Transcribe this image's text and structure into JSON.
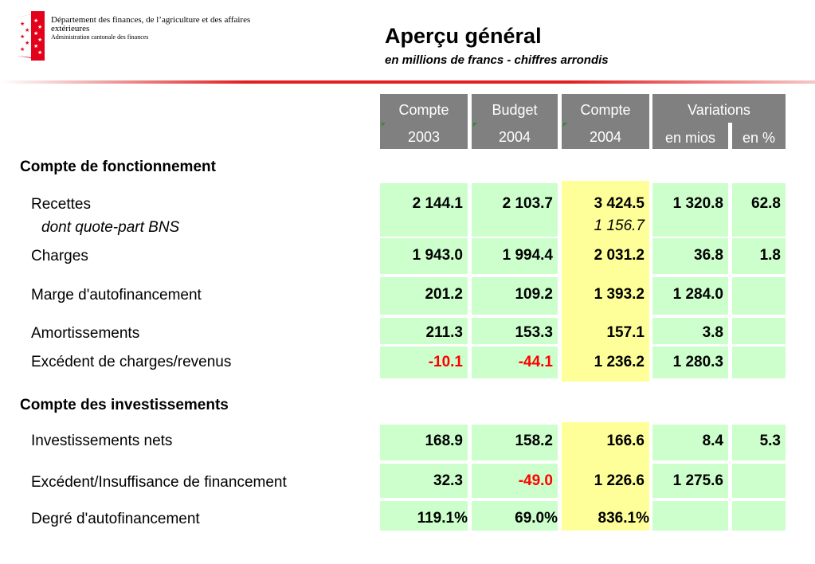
{
  "header": {
    "department": "Département des finances, de l’agriculture et des affaires extérieures",
    "administration": "Administration cantonale des finances",
    "title": "Aperçu général",
    "subtitle": "en millions de francs - chiffres arrondis"
  },
  "columns": {
    "c1": {
      "top": "Compte",
      "bottom": "2003"
    },
    "c2": {
      "top": "Budget",
      "bottom": "2004"
    },
    "c3": {
      "top": "Compte",
      "bottom": "2004"
    },
    "variations": {
      "top": "Variations",
      "mios": "en mios",
      "pct": "en %"
    }
  },
  "sections": {
    "fonctionnement": "Compte de fonctionnement",
    "investissements": "Compte des investissements"
  },
  "rows": [
    {
      "label": "Recettes",
      "sublabel": "dont quote-part BNS",
      "c2003": "2 144.1",
      "b2004": "2 103.7",
      "c2004": "3 424.5",
      "c2004_sub": "1 156.7",
      "var_mios": "1 320.8",
      "var_pct": "62.8"
    },
    {
      "label": "Charges",
      "c2003": "1 943.0",
      "b2004": "1 994.4",
      "c2004": "2 031.2",
      "var_mios": "36.8",
      "var_pct": "1.8"
    },
    {
      "label": "Marge d'autofinancement",
      "c2003": "201.2",
      "b2004": "109.2",
      "c2004": "1 393.2",
      "var_mios": "1 284.0",
      "var_pct": ""
    },
    {
      "label": "Amortissements",
      "c2003": "211.3",
      "b2004": "153.3",
      "c2004": "157.1",
      "var_mios": "3.8",
      "var_pct": ""
    },
    {
      "label": "Excédent de charges/revenus",
      "c2003": "-10.1",
      "b2004": "-44.1",
      "c2004": "1 236.2",
      "var_mios": "1 280.3",
      "var_pct": ""
    },
    {
      "label": "Investissements nets",
      "c2003": "168.9",
      "b2004": "158.2",
      "c2004": "166.6",
      "var_mios": "8.4",
      "var_pct": "5.3"
    },
    {
      "label": "Excédent/Insuffisance de financement",
      "c2003": "32.3",
      "b2004": "-49.0",
      "c2004": "1 226.6",
      "var_mios": "1 275.6",
      "var_pct": ""
    },
    {
      "label": "Degré d'autofinancement",
      "c2003": "119.1%",
      "b2004": "69.0%",
      "c2004": "836.1%",
      "var_mios": "",
      "var_pct": ""
    }
  ],
  "colors": {
    "green_cell": "#ccffcc",
    "yellow_cell": "#ffff99",
    "header_gray": "#808080",
    "negative": "#ff0000",
    "rule_red": "#e22020"
  }
}
